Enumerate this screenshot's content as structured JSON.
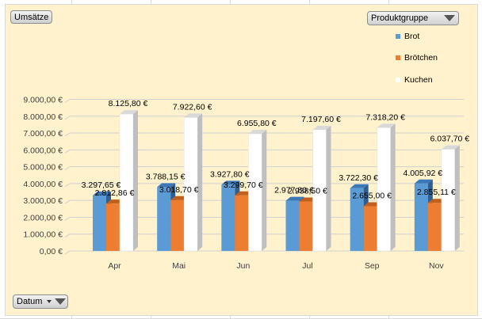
{
  "buttons": {
    "values_label": "Umsätze",
    "series_field_label": "Produktgruppe",
    "category_field_label": "Datum"
  },
  "colors": {
    "background": "#fff2cc",
    "Brot": "#5b9bd5",
    "Brötchen": "#ed7d31",
    "Kuchen": "#ffffff"
  },
  "chart_data": {
    "type": "bar",
    "style": "3d-clustered-column",
    "categories": [
      "Apr",
      "Mai",
      "Jun",
      "Jul",
      "Sep",
      "Nov"
    ],
    "series": [
      {
        "name": "Brot",
        "values": [
          3297.65,
          3788.15,
          3927.8,
          2977.8,
          3722.3,
          4005.92
        ],
        "labels": [
          "3.297,65 €",
          "3.788,15 €",
          "3.927,80 €",
          "2.977,80 €",
          "3.722,30 €",
          "4.005,92 €"
        ]
      },
      {
        "name": "Brötchen",
        "values": [
          2812.86,
          3018.7,
          3299.7,
          2938.5,
          2655.0,
          2855.11
        ],
        "labels": [
          "2.812,86 €",
          "3.018,70 €",
          "3.299,70 €",
          "2.938,50 €",
          "2.655,00 €",
          "2.855,11 €"
        ]
      },
      {
        "name": "Kuchen",
        "values": [
          8125.8,
          7922.6,
          6955.8,
          7197.6,
          7318.2,
          6037.7
        ],
        "labels": [
          "8.125,80 €",
          "7.922,60 €",
          "6.955,80 €",
          "7.197,60 €",
          "7.318,20 €",
          "6.037,70 €"
        ]
      }
    ],
    "yticks": [
      "0,00 €",
      "1.000,00 €",
      "2.000,00 €",
      "3.000,00 €",
      "4.000,00 €",
      "5.000,00 €",
      "6.000,00 €",
      "7.000,00 €",
      "8.000,00 €",
      "9.000,00 €"
    ],
    "ylim": [
      0,
      9000
    ],
    "grid": true,
    "legend_position": "top-right",
    "title": "",
    "xlabel": "",
    "ylabel": ""
  }
}
